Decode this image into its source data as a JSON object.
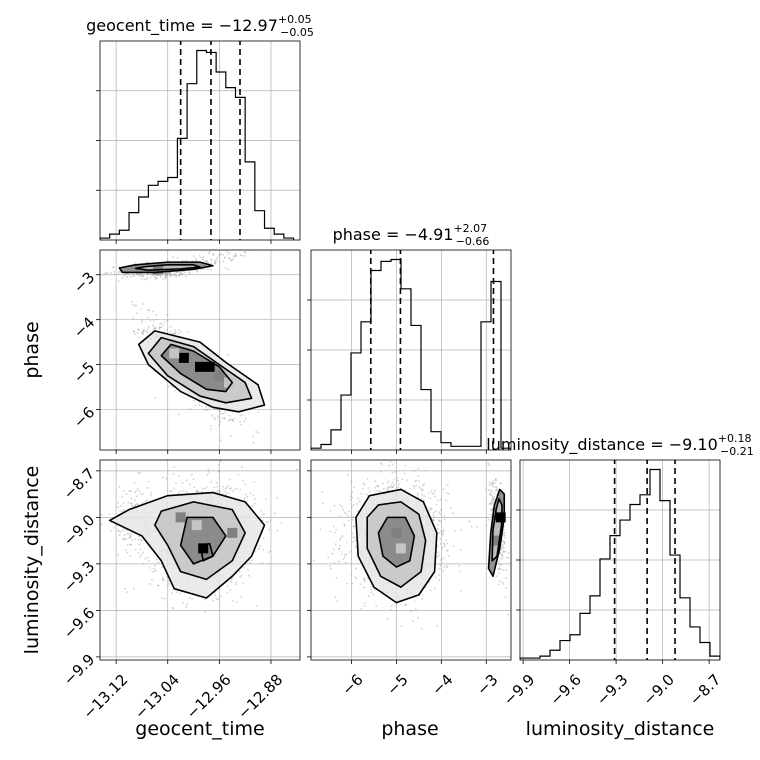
{
  "chart_data": {
    "type": "corner",
    "parameters": [
      {
        "name": "geocent_time",
        "range": [
          -13.145,
          -12.835
        ],
        "ticks": [
          -13.12,
          -13.04,
          -12.96,
          -12.88
        ],
        "tick_labels": [
          "−13.12",
          "−13.04",
          "−12.96",
          "−12.88"
        ],
        "title_median": "−12.97",
        "title_plus": "+0.05",
        "title_minus": "−0.05",
        "quantiles": [
          -13.02,
          -12.973,
          -12.928
        ],
        "hist_bins": [
          -13.145,
          -13.13,
          -13.115,
          -13.1,
          -13.085,
          -13.07,
          -13.055,
          -13.04,
          -13.025,
          -13.01,
          -12.995,
          -12.98,
          -12.965,
          -12.95,
          -12.935,
          -12.92,
          -12.905,
          -12.89,
          -12.875,
          -12.86,
          -12.845
        ],
        "hist_counts": [
          1,
          3,
          5,
          14,
          22,
          28,
          30,
          32,
          52,
          80,
          97,
          96,
          86,
          78,
          73,
          40,
          15,
          6,
          3,
          1
        ]
      },
      {
        "name": "phase",
        "range": [
          -6.9,
          -2.45
        ],
        "ticks": [
          -6,
          -5,
          -4,
          -3
        ],
        "tick_labels": [
          "−6",
          "−5",
          "−4",
          "−3"
        ],
        "title_median": "−4.91",
        "title_plus": "+2.07",
        "title_minus": "−0.66",
        "quantiles": [
          -5.57,
          -4.91,
          -2.84
        ],
        "hist_bins": [
          -6.9,
          -6.6775,
          -6.455,
          -6.2325,
          -6.01,
          -5.7875,
          -5.565,
          -5.3425,
          -5.12,
          -4.8975,
          -4.675,
          -4.4525,
          -4.23,
          -4.0075,
          -3.785,
          -3.5625,
          -3.34,
          -3.1175,
          -2.895,
          -2.6725,
          -2.45
        ],
        "hist_counts": [
          1,
          3,
          11,
          30,
          53,
          70,
          98,
          103,
          104,
          88,
          68,
          33,
          10,
          4,
          2,
          2,
          2,
          70,
          92,
          1
        ]
      },
      {
        "name": "luminosity_distance",
        "range": [
          -9.92,
          -8.63
        ],
        "ticks": [
          -9.9,
          -9.6,
          -9.3,
          -9.0,
          -8.7
        ],
        "tick_labels": [
          "−9.9",
          "−9.6",
          "−9.3",
          "−9.0",
          "−8.7"
        ],
        "title_median": "−9.10",
        "title_plus": "+0.18",
        "title_minus": "−0.21",
        "quantiles": [
          -9.31,
          -9.1,
          -8.92
        ],
        "hist_bins": [
          -9.92,
          -9.8555,
          -9.791,
          -9.7265,
          -9.662,
          -9.5975,
          -9.533,
          -9.4685,
          -9.404,
          -9.3395,
          -9.275,
          -9.2105,
          -9.146,
          -9.0815,
          -9.017,
          -8.9525,
          -8.888,
          -8.8235,
          -8.759,
          -8.6945,
          -8.63
        ],
        "hist_counts": [
          1,
          1,
          2,
          5,
          10,
          13,
          24,
          33,
          52,
          64,
          72,
          80,
          85,
          98,
          82,
          54,
          32,
          17,
          9,
          2
        ]
      }
    ],
    "titles": {
      "equals": " = ",
      "eq_main_order": "name = median"
    },
    "grid": true,
    "colors": {
      "line": "#000000",
      "grid": "#b0b0b0",
      "scatter": "#9a9a9a",
      "density_light": "#e6e6e6",
      "density_mid": "#c4c4c4",
      "density_dark": "#808080",
      "density_peak": "#000000"
    },
    "pairs": [
      {
        "x_param": "geocent_time",
        "y_param": "phase",
        "clusters": [
          {
            "cx": -13.005,
            "cy": -5.12,
            "sx": 0.035,
            "sy": 0.55,
            "rho": -0.82,
            "n": 900
          },
          {
            "cx": -13.055,
            "cy": -2.9,
            "sx": 0.03,
            "sy": 0.09,
            "rho": 0.2,
            "n": 320
          },
          {
            "cx": -12.97,
            "cy": -2.65,
            "sx": 0.03,
            "sy": 0.12,
            "rho": 0.5,
            "n": 90
          }
        ],
        "contours": [
          [
            [
              -13.06,
              -4.25
            ],
            [
              -12.99,
              -4.5
            ],
            [
              -12.95,
              -4.95
            ],
            [
              -12.9,
              -5.45
            ],
            [
              -12.89,
              -5.9
            ],
            [
              -12.93,
              -6.05
            ],
            [
              -12.97,
              -5.95
            ],
            [
              -13.02,
              -5.6
            ],
            [
              -13.07,
              -5.0
            ],
            [
              -13.085,
              -4.55
            ]
          ],
          [
            [
              -13.05,
              -4.4
            ],
            [
              -13.0,
              -4.6
            ],
            [
              -12.96,
              -5.0
            ],
            [
              -12.92,
              -5.4
            ],
            [
              -12.91,
              -5.75
            ],
            [
              -12.95,
              -5.85
            ],
            [
              -12.99,
              -5.7
            ],
            [
              -13.04,
              -5.25
            ],
            [
              -13.07,
              -4.75
            ]
          ],
          [
            [
              -13.035,
              -4.55
            ],
            [
              -13.0,
              -4.7
            ],
            [
              -12.96,
              -5.05
            ],
            [
              -12.94,
              -5.4
            ],
            [
              -12.95,
              -5.6
            ],
            [
              -12.98,
              -5.55
            ],
            [
              -13.02,
              -5.2
            ],
            [
              -13.05,
              -4.8
            ]
          ],
          [
            [
              -13.09,
              -2.78
            ],
            [
              -13.04,
              -2.72
            ],
            [
              -12.99,
              -2.72
            ],
            [
              -12.97,
              -2.8
            ],
            [
              -13.0,
              -2.88
            ],
            [
              -13.06,
              -2.95
            ],
            [
              -13.11,
              -2.95
            ],
            [
              -13.115,
              -2.85
            ]
          ],
          [
            [
              -13.075,
              -2.82
            ],
            [
              -13.04,
              -2.78
            ],
            [
              -13.0,
              -2.78
            ],
            [
              -12.99,
              -2.83
            ],
            [
              -13.02,
              -2.87
            ],
            [
              -13.07,
              -2.9
            ],
            [
              -13.09,
              -2.86
            ]
          ]
        ],
        "blocks": [
          {
            "x": -13.015,
            "y": -4.85,
            "level": "peak"
          },
          {
            "x": -12.99,
            "y": -5.05,
            "level": "peak"
          },
          {
            "x": -12.975,
            "y": -5.05,
            "level": "peak"
          },
          {
            "x": -12.96,
            "y": -5.25,
            "level": "dark"
          },
          {
            "x": -13.03,
            "y": -4.75,
            "level": "mid"
          },
          {
            "x": -12.945,
            "y": -5.4,
            "level": "mid"
          },
          {
            "x": -13.055,
            "y": -2.88,
            "level": "dark"
          }
        ]
      },
      {
        "x_param": "geocent_time",
        "y_param": "luminosity_distance",
        "clusters": [
          {
            "cx": -12.985,
            "cy": -9.12,
            "sx": 0.04,
            "sy": 0.17,
            "rho": 0.1,
            "n": 1300
          },
          {
            "cx": -13.09,
            "cy": -9.02,
            "sx": 0.025,
            "sy": 0.12,
            "rho": 0.0,
            "n": 150
          }
        ],
        "contours": [
          [
            [
              -13.1,
              -8.95
            ],
            [
              -13.04,
              -8.86
            ],
            [
              -12.97,
              -8.84
            ],
            [
              -12.92,
              -8.9
            ],
            [
              -12.89,
              -9.05
            ],
            [
              -12.91,
              -9.25
            ],
            [
              -12.94,
              -9.38
            ],
            [
              -12.98,
              -9.52
            ],
            [
              -13.03,
              -9.46
            ],
            [
              -13.05,
              -9.28
            ],
            [
              -13.08,
              -9.12
            ],
            [
              -13.13,
              -9.02
            ]
          ],
          [
            [
              -13.05,
              -8.96
            ],
            [
              -13.0,
              -8.9
            ],
            [
              -12.94,
              -8.95
            ],
            [
              -12.92,
              -9.1
            ],
            [
              -12.94,
              -9.28
            ],
            [
              -12.98,
              -9.4
            ],
            [
              -13.02,
              -9.35
            ],
            [
              -13.04,
              -9.18
            ],
            [
              -13.06,
              -9.05
            ]
          ],
          [
            [
              -13.01,
              -9.0
            ],
            [
              -12.97,
              -9.0
            ],
            [
              -12.95,
              -9.12
            ],
            [
              -12.97,
              -9.25
            ],
            [
              -13.0,
              -9.3
            ],
            [
              -13.02,
              -9.18
            ]
          ],
          [
            [
              -12.99,
              -9.18
            ],
            [
              -12.975,
              -9.17
            ],
            [
              -12.97,
              -9.25
            ],
            [
              -12.985,
              -9.28
            ]
          ]
        ],
        "blocks": [
          {
            "x": -12.985,
            "y": -9.2,
            "level": "peak"
          },
          {
            "x": -13.02,
            "y": -9.0,
            "level": "dark"
          },
          {
            "x": -12.94,
            "y": -9.1,
            "level": "dark"
          },
          {
            "x": -12.995,
            "y": -9.05,
            "level": "mid"
          }
        ]
      },
      {
        "x_param": "phase",
        "y_param": "luminosity_distance",
        "clusters": [
          {
            "cx": -5.0,
            "cy": -9.12,
            "sx": 0.55,
            "sy": 0.17,
            "rho": 0.0,
            "n": 1300
          },
          {
            "cx": -2.75,
            "cy": -9.05,
            "sx": 0.1,
            "sy": 0.17,
            "rho": -0.6,
            "n": 260
          }
        ],
        "contours": [
          [
            [
              -5.6,
              -8.86
            ],
            [
              -4.9,
              -8.82
            ],
            [
              -4.4,
              -8.9
            ],
            [
              -4.1,
              -9.1
            ],
            [
              -4.15,
              -9.35
            ],
            [
              -4.5,
              -9.5
            ],
            [
              -5.0,
              -9.55
            ],
            [
              -5.5,
              -9.45
            ],
            [
              -5.85,
              -9.25
            ],
            [
              -5.9,
              -9.0
            ]
          ],
          [
            [
              -5.4,
              -8.92
            ],
            [
              -4.9,
              -8.9
            ],
            [
              -4.5,
              -8.98
            ],
            [
              -4.35,
              -9.15
            ],
            [
              -4.45,
              -9.35
            ],
            [
              -4.9,
              -9.45
            ],
            [
              -5.35,
              -9.38
            ],
            [
              -5.65,
              -9.2
            ],
            [
              -5.65,
              -9.0
            ]
          ],
          [
            [
              -5.2,
              -9.0
            ],
            [
              -4.8,
              -9.0
            ],
            [
              -4.6,
              -9.12
            ],
            [
              -4.7,
              -9.28
            ],
            [
              -5.0,
              -9.32
            ],
            [
              -5.3,
              -9.25
            ],
            [
              -5.4,
              -9.1
            ]
          ],
          [
            [
              -2.7,
              -8.82
            ],
            [
              -2.6,
              -8.85
            ],
            [
              -2.6,
              -9.0
            ],
            [
              -2.7,
              -9.2
            ],
            [
              -2.85,
              -9.38
            ],
            [
              -2.95,
              -9.33
            ],
            [
              -2.9,
              -9.1
            ],
            [
              -2.82,
              -8.92
            ]
          ],
          [
            [
              -2.72,
              -8.88
            ],
            [
              -2.65,
              -8.92
            ],
            [
              -2.66,
              -9.05
            ],
            [
              -2.76,
              -9.25
            ],
            [
              -2.87,
              -9.28
            ],
            [
              -2.85,
              -9.08
            ],
            [
              -2.78,
              -8.95
            ]
          ]
        ],
        "blocks": [
          {
            "x": -5.0,
            "y": -9.1,
            "level": "dark"
          },
          {
            "x": -4.9,
            "y": -9.2,
            "level": "mid"
          },
          {
            "x": -2.68,
            "y": -9.0,
            "level": "peak"
          },
          {
            "x": -2.8,
            "y": -9.15,
            "level": "dark"
          }
        ]
      }
    ]
  }
}
